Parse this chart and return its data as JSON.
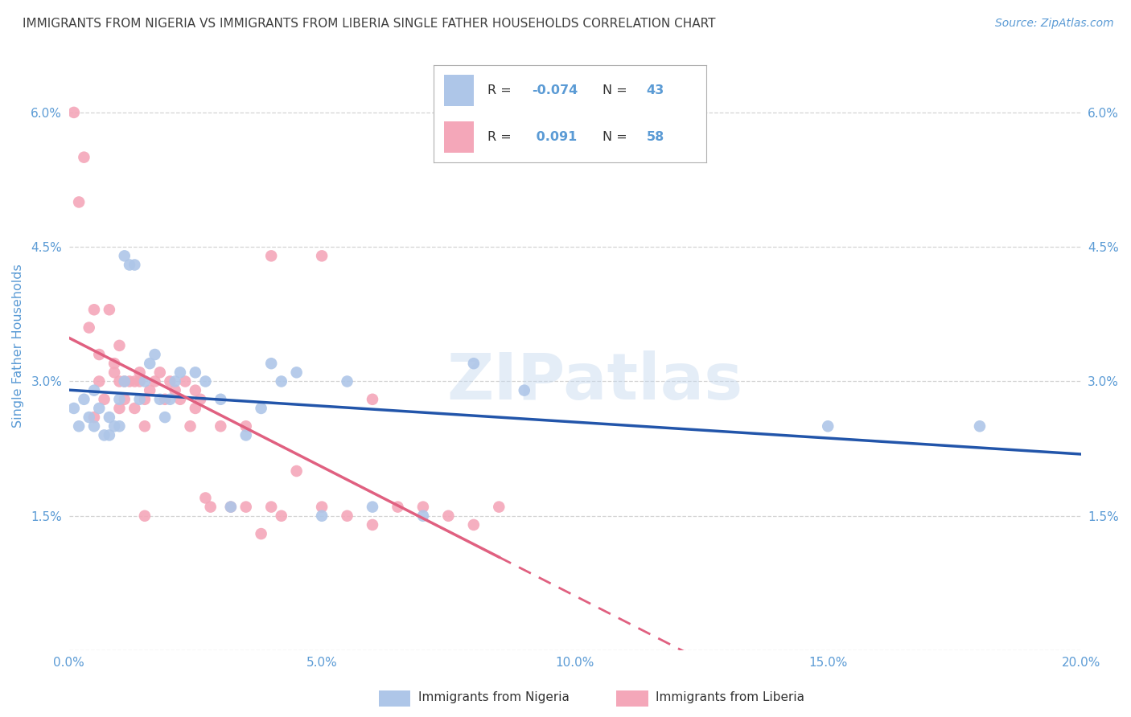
{
  "title": "IMMIGRANTS FROM NIGERIA VS IMMIGRANTS FROM LIBERIA SINGLE FATHER HOUSEHOLDS CORRELATION CHART",
  "source": "Source: ZipAtlas.com",
  "ylabel": "Single Father Households",
  "xlabel_nigeria": "Immigrants from Nigeria",
  "xlabel_liberia": "Immigrants from Liberia",
  "xmin": 0.0,
  "xmax": 0.2,
  "ymin": 0.0,
  "ymax": 0.068,
  "yticks": [
    0.015,
    0.03,
    0.045,
    0.06
  ],
  "ytick_labels": [
    "1.5%",
    "3.0%",
    "4.5%",
    "6.0%"
  ],
  "xticks": [
    0.0,
    0.05,
    0.1,
    0.15,
    0.2
  ],
  "xtick_labels": [
    "0.0%",
    "5.0%",
    "10.0%",
    "15.0%",
    "20.0%"
  ],
  "nigeria_color": "#aec6e8",
  "liberia_color": "#f4a7b9",
  "nigeria_line_color": "#2255aa",
  "liberia_line_color": "#e06080",
  "R_nigeria": -0.074,
  "N_nigeria": 43,
  "R_liberia": 0.091,
  "N_liberia": 58,
  "nigeria_x": [
    0.001,
    0.002,
    0.003,
    0.004,
    0.005,
    0.005,
    0.006,
    0.007,
    0.008,
    0.008,
    0.009,
    0.01,
    0.01,
    0.011,
    0.011,
    0.012,
    0.013,
    0.014,
    0.015,
    0.016,
    0.017,
    0.018,
    0.019,
    0.02,
    0.021,
    0.022,
    0.025,
    0.027,
    0.03,
    0.032,
    0.035,
    0.038,
    0.04,
    0.042,
    0.045,
    0.05,
    0.055,
    0.06,
    0.07,
    0.08,
    0.09,
    0.15,
    0.18
  ],
  "nigeria_y": [
    0.027,
    0.025,
    0.028,
    0.026,
    0.025,
    0.029,
    0.027,
    0.024,
    0.026,
    0.024,
    0.025,
    0.028,
    0.025,
    0.03,
    0.044,
    0.043,
    0.043,
    0.028,
    0.03,
    0.032,
    0.033,
    0.028,
    0.026,
    0.028,
    0.03,
    0.031,
    0.031,
    0.03,
    0.028,
    0.016,
    0.024,
    0.027,
    0.032,
    0.03,
    0.031,
    0.015,
    0.03,
    0.016,
    0.015,
    0.032,
    0.029,
    0.025,
    0.025
  ],
  "liberia_x": [
    0.001,
    0.002,
    0.003,
    0.004,
    0.005,
    0.005,
    0.006,
    0.006,
    0.007,
    0.008,
    0.009,
    0.009,
    0.01,
    0.01,
    0.011,
    0.011,
    0.012,
    0.013,
    0.013,
    0.014,
    0.014,
    0.015,
    0.015,
    0.016,
    0.017,
    0.018,
    0.019,
    0.02,
    0.021,
    0.022,
    0.023,
    0.024,
    0.025,
    0.026,
    0.027,
    0.028,
    0.03,
    0.032,
    0.035,
    0.038,
    0.04,
    0.042,
    0.045,
    0.05,
    0.055,
    0.06,
    0.065,
    0.07,
    0.075,
    0.08,
    0.085,
    0.04,
    0.05,
    0.06,
    0.035,
    0.025,
    0.015,
    0.01
  ],
  "liberia_y": [
    0.06,
    0.05,
    0.055,
    0.036,
    0.038,
    0.026,
    0.03,
    0.033,
    0.028,
    0.038,
    0.031,
    0.032,
    0.027,
    0.034,
    0.03,
    0.028,
    0.03,
    0.03,
    0.027,
    0.03,
    0.031,
    0.025,
    0.028,
    0.029,
    0.03,
    0.031,
    0.028,
    0.03,
    0.029,
    0.028,
    0.03,
    0.025,
    0.027,
    0.028,
    0.017,
    0.016,
    0.025,
    0.016,
    0.016,
    0.013,
    0.016,
    0.015,
    0.02,
    0.016,
    0.015,
    0.014,
    0.016,
    0.016,
    0.015,
    0.014,
    0.016,
    0.044,
    0.044,
    0.028,
    0.025,
    0.029,
    0.015,
    0.03
  ],
  "watermark": "ZIPatlas",
  "background_color": "#ffffff",
  "grid_color": "#c8c8c8",
  "axis_label_color": "#5b9bd5",
  "tick_label_color": "#5b9bd5",
  "title_color": "#404040",
  "legend_R_color": "#5b9bd5",
  "legend_text_color": "#333333"
}
